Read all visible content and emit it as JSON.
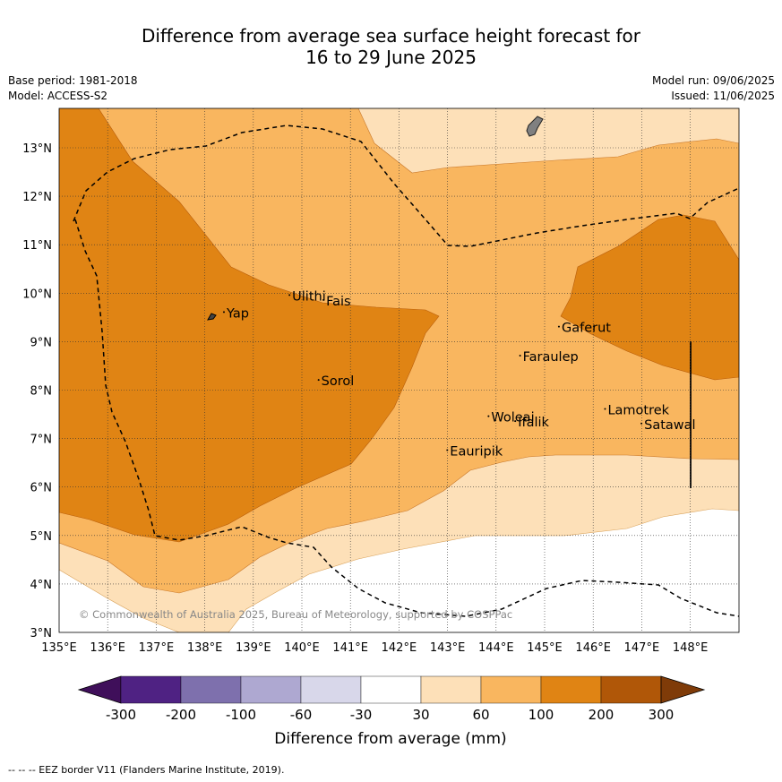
{
  "title_line1": "Difference from average sea surface height forecast for",
  "title_line2": "16 to 29 June 2025",
  "meta_left": [
    "Base period: 1981-2018",
    "Model: ACCESS-S2"
  ],
  "meta_right": [
    "Model run: 09/06/2025",
    "Issued: 11/06/2025"
  ],
  "lat_labels": [
    "3°N",
    "4°N",
    "5°N",
    "6°N",
    "7°N",
    "8°N",
    "9°N",
    "10°N",
    "11°N",
    "12°N",
    "13°N"
  ],
  "lon_labels": [
    "135°E",
    "136°E",
    "137°E",
    "138°E",
    "139°E",
    "140°E",
    "141°E",
    "142°E",
    "143°E",
    "144°E",
    "145°E",
    "146°E",
    "147°E",
    "148°E"
  ],
  "places": [
    {
      "name": "Yap",
      "lon": 138.45,
      "lat": 9.5
    },
    {
      "name": "Ulithi",
      "lon": 139.8,
      "lat": 9.85
    },
    {
      "name": "Fais",
      "lon": 140.5,
      "lat": 9.75
    },
    {
      "name": "Sorol",
      "lon": 140.4,
      "lat": 8.1
    },
    {
      "name": "Gaferut",
      "lon": 145.35,
      "lat": 9.2
    },
    {
      "name": "Faraulep",
      "lon": 144.55,
      "lat": 8.6
    },
    {
      "name": "Woleai",
      "lon": 143.9,
      "lat": 7.35
    },
    {
      "name": "Ifalik",
      "lon": 144.45,
      "lat": 7.25
    },
    {
      "name": "Lamotrek",
      "lon": 146.3,
      "lat": 7.5
    },
    {
      "name": "Satawal",
      "lon": 147.05,
      "lat": 7.2
    },
    {
      "name": "Eauripik",
      "lon": 143.05,
      "lat": 6.65
    }
  ],
  "copyright": "© Commonwealth of Australia 2025, Bureau of Meteorology, supported by COSPPac",
  "colorbar": {
    "label": "Difference from average (mm)",
    "ticks": [
      "-300",
      "-200",
      "-100",
      "-60",
      "-30",
      "30",
      "60",
      "100",
      "200",
      "300"
    ],
    "colors": [
      "#3f0f5a",
      "#4f2283",
      "#7e70ad",
      "#aea8d1",
      "#d8d7ea",
      "#ffffff",
      "#fde0b8",
      "#f9b65f",
      "#e08414",
      "#b05708",
      "#7f3b08"
    ]
  },
  "footer": "--  --  -- EEZ border V11 (Flanders Marine Institute, 2019)."
}
